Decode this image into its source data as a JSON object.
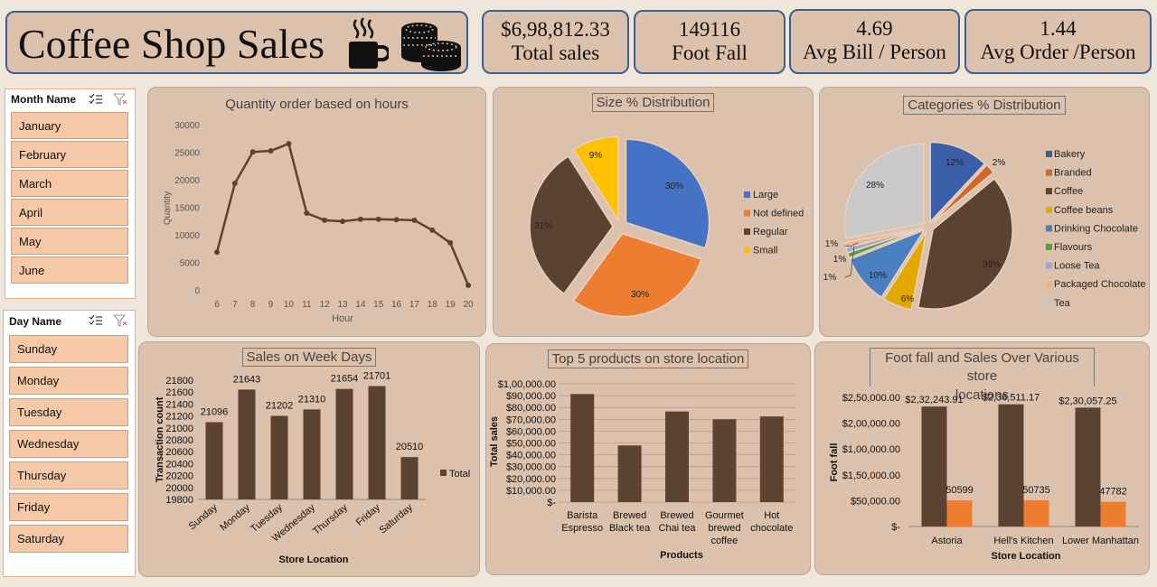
{
  "title": "Coffee Shop Sales",
  "kpis": [
    {
      "value": "$6,98,812.33",
      "label": "Total sales"
    },
    {
      "value": "149116",
      "label": "Foot Fall"
    },
    {
      "value": "4.69",
      "label": "Avg Bill / Person"
    },
    {
      "value": "1.44",
      "label": "Avg Order /Person"
    }
  ],
  "month_slicer": {
    "header": "Month Name",
    "items": [
      "January",
      "February",
      "March",
      "April",
      "May",
      "June"
    ]
  },
  "day_slicer": {
    "header": "Day Name",
    "items": [
      "Sunday",
      "Monday",
      "Tuesday",
      "Wednesday",
      "Thursday",
      "Friday",
      "Saturday"
    ]
  },
  "colors": {
    "brown": "#5c4331",
    "orange": "#ed7d31",
    "blue": "#4472c4",
    "yellow": "#ffc000",
    "grey": "#c9c9c9"
  },
  "chart_data": [
    {
      "id": "hours",
      "type": "line",
      "title": "Quantity order based on hours",
      "xlabel": "Hour",
      "ylabel": "Quantity",
      "x": [
        6,
        7,
        8,
        9,
        10,
        11,
        12,
        13,
        14,
        15,
        16,
        17,
        18,
        19,
        20
      ],
      "values": [
        7000,
        19500,
        25200,
        25400,
        26700,
        14100,
        12800,
        12600,
        13000,
        13000,
        12900,
        12800,
        11000,
        8700,
        1000
      ],
      "yticks": [
        "0",
        "5000",
        "10000",
        "15000",
        "20000",
        "25000",
        "30000"
      ],
      "ylim": [
        0,
        30000
      ]
    },
    {
      "id": "size",
      "type": "pie",
      "title": "Size % Distribution",
      "categories": [
        "Large",
        "Not defined",
        "Regular",
        "Small"
      ],
      "values": [
        30,
        30,
        31,
        9
      ],
      "labels": [
        "30%",
        "30%",
        "31%",
        "9%"
      ],
      "colors": [
        "#4472c4",
        "#ed7d31",
        "#5c4331",
        "#ffc000"
      ],
      "legend": "right"
    },
    {
      "id": "categories",
      "type": "pie",
      "title": "Categories % Distribution",
      "categories": [
        "Bakery",
        "Branded",
        "Coffee",
        "Coffee beans",
        "Drinking Chocolate",
        "Flavours",
        "Loose Tea",
        "Packaged Chocolate",
        "Tea"
      ],
      "values": [
        12,
        2,
        39,
        6,
        10,
        1,
        1,
        1,
        28
      ],
      "labels": [
        "12%",
        "2%",
        "39%",
        "6%",
        "10%",
        "1%",
        "1%",
        "1%",
        "28%"
      ],
      "colors": [
        "#3a5fa8",
        "#d0682a",
        "#5c4331",
        "#e3a900",
        "#4a7fc0",
        "#5a9a46",
        "#9aa8d6",
        "#f4b183",
        "#c9c9c9"
      ],
      "legend": "right"
    },
    {
      "id": "weekdays",
      "type": "bar",
      "title": "Sales on Week Days",
      "xlabel": "Store Location",
      "ylabel": "Transaction count",
      "categories": [
        "Sunday",
        "Monday",
        "Tuesday",
        "Wednesday",
        "Thursday",
        "Friday",
        "Saturday"
      ],
      "values": [
        21096,
        21643,
        21202,
        21310,
        21654,
        21701,
        20510
      ],
      "data_labels": [
        "21096",
        "21643",
        "21202",
        "21310",
        "21654",
        "21701",
        "20510"
      ],
      "yticks": [
        "19800",
        "20000",
        "20200",
        "20400",
        "20600",
        "20800",
        "21000",
        "21200",
        "21400",
        "21600",
        "21800"
      ],
      "ylim": [
        19800,
        21800
      ],
      "series": [
        {
          "name": "Total"
        }
      ]
    },
    {
      "id": "products",
      "type": "bar",
      "title": "Top 5 products on store location",
      "xlabel": "Products",
      "ylabel": "Total sales",
      "categories": [
        "Barista Espresso",
        "Brewed Black tea",
        "Brewed Chai tea",
        "Gourmet brewed coffee",
        "Hot chocolate"
      ],
      "category_lines": [
        [
          "Barista",
          "Espresso"
        ],
        [
          "Brewed",
          "Black tea"
        ],
        [
          "Brewed",
          "Chai tea"
        ],
        [
          "Gourmet",
          "brewed",
          "coffee"
        ],
        [
          "Hot",
          "chocolate"
        ]
      ],
      "values": [
        91400,
        47900,
        76600,
        70000,
        72400
      ],
      "yticks": [
        "$-",
        "$10,000.00",
        "$20,000.00",
        "$30,000.00",
        "$40,000.00",
        "$50,000.00",
        "$60,000.00",
        "$70,000.00",
        "$80,000.00",
        "$90,000.00",
        "$1,00,000.00"
      ],
      "ylim": [
        0,
        100000
      ]
    },
    {
      "id": "stores",
      "type": "bar",
      "title": "Foot fall and Sales Over Various store locations",
      "title_lines": [
        "Foot fall and Sales Over Various store",
        "locations"
      ],
      "xlabel": "Store Location",
      "ylabel": "Foot fall",
      "categories": [
        "Astoria",
        "Hell's Kitchen",
        "Lower Manhattan"
      ],
      "series": [
        {
          "values": [
            232243.91,
            236511.17,
            230057.25
          ],
          "labels": [
            "$2,32,243.91",
            "$2,36,511.17",
            "$2,30,057.25"
          ]
        },
        {
          "values": [
            50599,
            50735,
            47782
          ],
          "labels": [
            "50599",
            "50735",
            "47782"
          ]
        }
      ],
      "yticks": [
        "$-",
        "$50,000.00",
        "$1,50,000.00",
        "$1,00,000.00",
        "$2,00,000.00",
        "$2,50,000.00"
      ],
      "ylim": [
        0,
        250000
      ]
    }
  ]
}
